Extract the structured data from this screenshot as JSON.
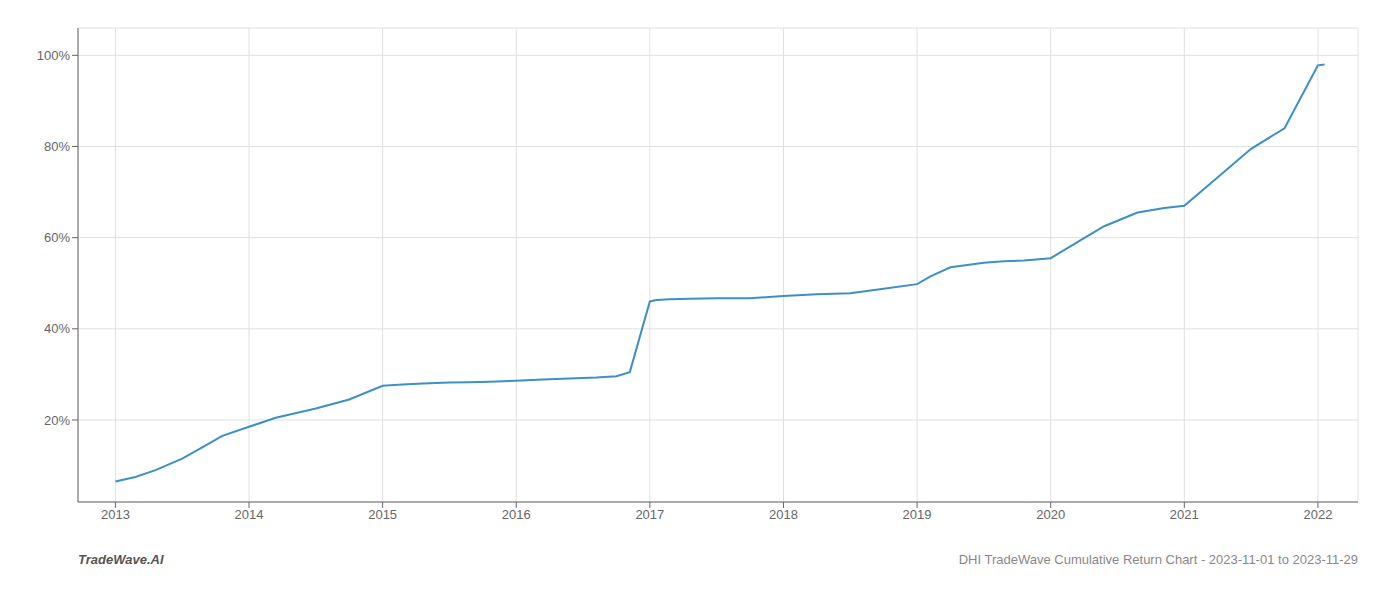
{
  "chart_data": {
    "type": "line",
    "title": "DHI TradeWave Cumulative Return Chart - 2023-11-01 to 2023-11-29",
    "annotations": [
      "TradeWave.AI"
    ],
    "color": "#3d8fc8",
    "grid": true,
    "x": [
      2013.0,
      2013.15,
      2013.3,
      2013.5,
      2013.65,
      2013.8,
      2014.0,
      2014.2,
      2014.5,
      2014.75,
      2015.0,
      2015.15,
      2015.3,
      2015.5,
      2015.65,
      2015.8,
      2016.0,
      2016.2,
      2016.4,
      2016.6,
      2016.75,
      2016.85,
      2017.0,
      2017.05,
      2017.15,
      2017.3,
      2017.5,
      2017.75,
      2018.0,
      2018.25,
      2018.5,
      2018.75,
      2019.0,
      2019.1,
      2019.25,
      2019.5,
      2019.65,
      2019.8,
      2020.0,
      2020.2,
      2020.4,
      2020.65,
      2020.85,
      2021.0,
      2021.2,
      2021.5,
      2021.75,
      2022.0,
      2022.05
    ],
    "values": [
      0.065,
      0.075,
      0.09,
      0.115,
      0.14,
      0.165,
      0.185,
      0.205,
      0.225,
      0.245,
      0.275,
      0.278,
      0.28,
      0.282,
      0.283,
      0.284,
      0.286,
      0.289,
      0.291,
      0.293,
      0.296,
      0.305,
      0.46,
      0.463,
      0.465,
      0.466,
      0.467,
      0.467,
      0.472,
      0.476,
      0.478,
      0.488,
      0.498,
      0.515,
      0.535,
      0.545,
      0.548,
      0.55,
      0.555,
      0.59,
      0.625,
      0.655,
      0.665,
      0.67,
      0.72,
      0.795,
      0.84,
      0.978,
      0.98
    ],
    "xlim": [
      2012.72,
      2022.3
    ],
    "xticks": [
      2013,
      2014,
      2015,
      2016,
      2017,
      2018,
      2019,
      2020,
      2021,
      2022
    ],
    "ylim": [
      0.02,
      1.06
    ],
    "yticks": [
      {
        "value": 0.2,
        "label": "20%"
      },
      {
        "value": 0.4,
        "label": "40%"
      },
      {
        "value": 0.6,
        "label": "60%"
      },
      {
        "value": 0.8,
        "label": "80%"
      },
      {
        "value": 1.0,
        "label": "100%"
      }
    ]
  }
}
